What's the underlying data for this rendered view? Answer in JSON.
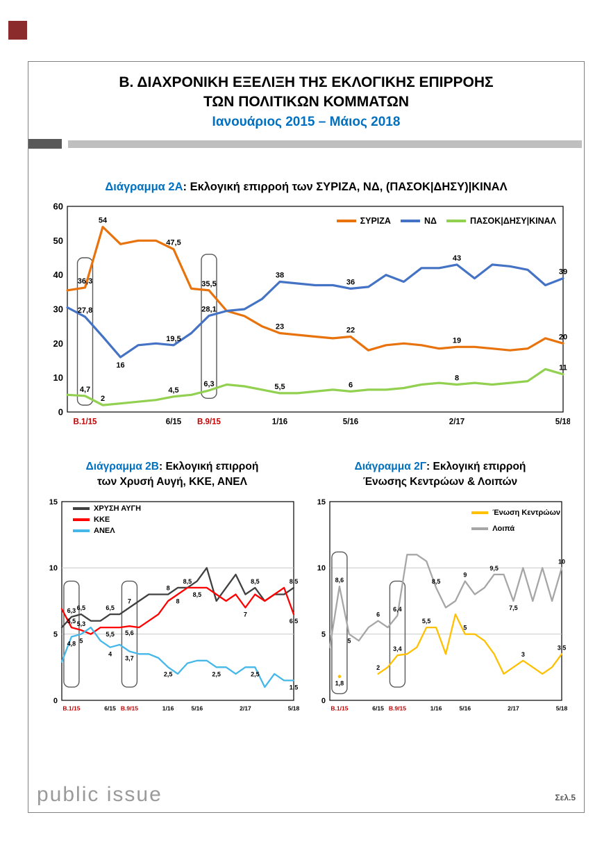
{
  "page": {
    "logo": "public issue",
    "page_number": "Σελ.5",
    "corner_color": "#8C2B2B",
    "accent_blue": "#0070C0",
    "election_label_red": "#C00000"
  },
  "header": {
    "title_line1": "Β. ΔΙΑΧΡΟΝΙΚΗ ΕΞΕΛΙΞΗ ΤΗΣ ΕΚΛΟΓΙΚΗΣ ΕΠΙΡΡΟΗΣ",
    "title_line2": "ΤΩΝ ΠΟΛΙΤΙΚΩΝ ΚΟΜΜΑΤΩΝ",
    "subtitle": "Ιανουάριος 2015 – Μάιος 2018"
  },
  "chart_data": [
    {
      "type": "line",
      "title_prefix": "Διάγραμμα 2Α",
      "title_rest": ": Εκλογική επιρροή των  ΣΥΡΙΖΑ, ΝΔ, (ΠΑΣΟΚ|ΔΗΣΥ)|ΚΙΝΑΛ",
      "ylim": [
        0,
        60
      ],
      "yticks": [
        0,
        10,
        20,
        30,
        40,
        50,
        60
      ],
      "gridlines": [],
      "n_points": 29,
      "xticks": [
        {
          "i": 1,
          "label": "Β.1/15",
          "color": "#C00000"
        },
        {
          "i": 6,
          "label": "6/15"
        },
        {
          "i": 8,
          "label": "Β.9/15",
          "color": "#C00000"
        },
        {
          "i": 12,
          "label": "1/16"
        },
        {
          "i": 16,
          "label": "5/16"
        },
        {
          "i": 22,
          "label": "2/17"
        },
        {
          "i": 28,
          "label": "5/18"
        }
      ],
      "election_boxes": [
        {
          "i": 1,
          "v0": 2,
          "v1": 45
        },
        {
          "i": 8,
          "v0": 4,
          "v1": 46
        }
      ],
      "legend": {
        "position": "top-right",
        "orientation": "horizontal",
        "items": [
          {
            "name": "ΣΥΡΙΖΑ",
            "color": "#E8720C"
          },
          {
            "name": "ΝΔ",
            "color": "#4472C4"
          },
          {
            "name": "ΠΑΣΟΚ|ΔΗΣΥ|ΚΙΝΑΛ",
            "color": "#92D050"
          }
        ]
      },
      "series": [
        {
          "name": "ΣΥΡΙΖΑ",
          "color": "#E8720C",
          "values": [
            35.5,
            36.3,
            54,
            49,
            50,
            50,
            47.5,
            36,
            35.5,
            29.5,
            28,
            25,
            23,
            22.5,
            22,
            21.5,
            22,
            18,
            19.5,
            20,
            19.5,
            18.5,
            19,
            19,
            18.5,
            18,
            18.5,
            21.5,
            20
          ],
          "labels": [
            {
              "i": 1,
              "t": "36,3",
              "pos": "above"
            },
            {
              "i": 2,
              "t": "54",
              "pos": "above"
            },
            {
              "i": 6,
              "t": "47,5",
              "pos": "above"
            },
            {
              "i": 8,
              "t": "35,5",
              "pos": "above"
            },
            {
              "i": 12,
              "t": "23",
              "pos": "above"
            },
            {
              "i": 16,
              "t": "22",
              "pos": "above"
            },
            {
              "i": 22,
              "t": "19",
              "pos": "above"
            },
            {
              "i": 28,
              "t": "20",
              "pos": "above"
            }
          ]
        },
        {
          "name": "ΝΔ",
          "color": "#4472C4",
          "values": [
            30.5,
            27.8,
            22,
            16,
            19.5,
            20,
            19.5,
            23,
            28.1,
            29.5,
            30,
            33,
            38,
            37.5,
            37,
            37,
            36,
            36.5,
            40,
            38,
            42,
            42,
            43,
            39,
            43,
            42.5,
            41.5,
            37,
            39
          ],
          "labels": [
            {
              "i": 1,
              "t": "27,8",
              "pos": "above"
            },
            {
              "i": 3,
              "t": "16",
              "pos": "below"
            },
            {
              "i": 6,
              "t": "19,5",
              "pos": "above"
            },
            {
              "i": 8,
              "t": "28,1",
              "pos": "above"
            },
            {
              "i": 12,
              "t": "38",
              "pos": "above"
            },
            {
              "i": 16,
              "t": "36",
              "pos": "above"
            },
            {
              "i": 22,
              "t": "43",
              "pos": "above"
            },
            {
              "i": 28,
              "t": "39",
              "pos": "above"
            }
          ]
        },
        {
          "name": "ΠΑΣΟΚ|ΔΗΣΥ|ΚΙΝΑΛ",
          "color": "#92D050",
          "values": [
            5,
            4.7,
            2,
            2.5,
            3,
            3.5,
            4.5,
            5,
            6.3,
            8,
            7.5,
            6.5,
            5.5,
            5.5,
            6,
            6.5,
            6,
            6.5,
            6.5,
            7,
            8,
            8.5,
            8,
            8.5,
            8,
            8.5,
            9,
            12.5,
            11
          ],
          "labels": [
            {
              "i": 1,
              "t": "4,7",
              "pos": "above"
            },
            {
              "i": 2,
              "t": "2",
              "pos": "above"
            },
            {
              "i": 6,
              "t": "4,5",
              "pos": "above"
            },
            {
              "i": 8,
              "t": "6,3",
              "pos": "above"
            },
            {
              "i": 12,
              "t": "5,5",
              "pos": "above"
            },
            {
              "i": 16,
              "t": "6",
              "pos": "above"
            },
            {
              "i": 22,
              "t": "8",
              "pos": "above"
            },
            {
              "i": 28,
              "t": "11",
              "pos": "above"
            }
          ]
        }
      ]
    },
    {
      "type": "line",
      "title_prefix": "Διάγραμμα 2Β",
      "title_rest": ": Εκλογική επιρροή",
      "title_line2": "των Χρυσή Αυγή, ΚΚΕ, ΑΝΕΛ",
      "ylim": [
        0,
        15
      ],
      "yticks": [
        0,
        5,
        10,
        15
      ],
      "gridlines": [
        5,
        10
      ],
      "n_points": 25,
      "xticks": [
        {
          "i": 1,
          "label": "Β.1/15",
          "color": "#C00000"
        },
        {
          "i": 5,
          "label": "6/15"
        },
        {
          "i": 7,
          "label": "Β.9/15",
          "color": "#C00000"
        },
        {
          "i": 11,
          "label": "1/16"
        },
        {
          "i": 14,
          "label": "5/16"
        },
        {
          "i": 19,
          "label": "2/17"
        },
        {
          "i": 24,
          "label": "5/18"
        }
      ],
      "election_boxes": [
        {
          "i": 1,
          "v0": 1,
          "v1": 9
        },
        {
          "i": 7,
          "v0": 1,
          "v1": 9
        }
      ],
      "legend": {
        "position": "top-left",
        "orientation": "vertical",
        "items": [
          {
            "name": "ΧΡΥΣΗ ΑΥΓΗ",
            "color": "#404040"
          },
          {
            "name": "ΚΚΕ",
            "color": "#FF0000"
          },
          {
            "name": "ΑΝΕΛ",
            "color": "#45B7E8"
          }
        ]
      },
      "series": [
        {
          "name": "ΧΡΥΣΗ ΑΥΓΗ",
          "color": "#404040",
          "values": [
            5.5,
            6.3,
            6.5,
            6,
            6,
            6.5,
            6.5,
            7,
            7.5,
            8,
            8,
            8,
            8.5,
            8.5,
            9,
            10,
            7.5,
            8.5,
            9.5,
            8,
            8.5,
            7.5,
            8,
            8,
            8.5
          ],
          "labels": [
            {
              "i": 1,
              "t": "6,3",
              "pos": "above"
            },
            {
              "i": 2,
              "t": "6,5",
              "pos": "above"
            },
            {
              "i": 5,
              "t": "6,5",
              "pos": "above"
            },
            {
              "i": 7,
              "t": "7",
              "pos": "above"
            },
            {
              "i": 11,
              "t": "8",
              "pos": "above"
            },
            {
              "i": 13,
              "t": "8,5",
              "pos": "above"
            },
            {
              "i": 20,
              "t": "8,5",
              "pos": "above"
            },
            {
              "i": 24,
              "t": "8,5",
              "pos": "above"
            }
          ]
        },
        {
          "name": "ΚΚΕ",
          "color": "#FF0000",
          "values": [
            6.9,
            5.5,
            5.3,
            5,
            5.5,
            5.5,
            5.5,
            5.6,
            5.5,
            6,
            6.5,
            7.5,
            8,
            8.5,
            8.5,
            8.5,
            8,
            7.5,
            8,
            7,
            8,
            7.5,
            8,
            8.5,
            6.5
          ],
          "labels": [
            {
              "i": 1,
              "t": "5,5",
              "pos": "above"
            },
            {
              "i": 2,
              "t": "5,3",
              "pos": "above"
            },
            {
              "i": 5,
              "t": "5,5",
              "pos": "below"
            },
            {
              "i": 7,
              "t": "5,6",
              "pos": "below"
            },
            {
              "i": 12,
              "t": "8",
              "pos": "below"
            },
            {
              "i": 14,
              "t": "8,5",
              "pos": "below"
            },
            {
              "i": 19,
              "t": "7",
              "pos": "below"
            },
            {
              "i": 24,
              "t": "6,5",
              "pos": "below"
            }
          ]
        },
        {
          "name": "ΑΝΕΛ",
          "color": "#45B7E8",
          "values": [
            2.9,
            4.8,
            5,
            5.5,
            4.5,
            4,
            4.2,
            3.7,
            3.5,
            3.5,
            3.2,
            2.5,
            2,
            2.8,
            3,
            3,
            2.5,
            2.5,
            2,
            2.5,
            2.5,
            1,
            2,
            1.5,
            1.5
          ],
          "labels": [
            {
              "i": 1,
              "t": "4,8",
              "pos": "below"
            },
            {
              "i": 2,
              "t": "5",
              "pos": "below"
            },
            {
              "i": 5,
              "t": "4",
              "pos": "below"
            },
            {
              "i": 7,
              "t": "3,7",
              "pos": "below"
            },
            {
              "i": 11,
              "t": "2,5",
              "pos": "below"
            },
            {
              "i": 16,
              "t": "2,5",
              "pos": "below"
            },
            {
              "i": 20,
              "t": "2,5",
              "pos": "below"
            },
            {
              "i": 24,
              "t": "1,5",
              "pos": "below"
            }
          ]
        }
      ]
    },
    {
      "type": "line",
      "title_prefix": "Διάγραμμα 2Γ",
      "title_rest": ": Εκλογική επιρροή",
      "title_line2": "Ένωσης Κεντρώων & Λοιπών",
      "ylim": [
        0,
        15
      ],
      "yticks": [
        0,
        5,
        10,
        15
      ],
      "gridlines": [
        5,
        10
      ],
      "n_points": 25,
      "xticks": [
        {
          "i": 1,
          "label": "Β.1/15",
          "color": "#C00000"
        },
        {
          "i": 5,
          "label": "6/15"
        },
        {
          "i": 7,
          "label": "Β.9/15",
          "color": "#C00000"
        },
        {
          "i": 11,
          "label": "1/16"
        },
        {
          "i": 14,
          "label": "5/16"
        },
        {
          "i": 19,
          "label": "2/17"
        },
        {
          "i": 24,
          "label": "5/18"
        }
      ],
      "election_boxes": [
        {
          "i": 1,
          "v0": 0.5,
          "v1": 11.2
        },
        {
          "i": 7,
          "v0": 1,
          "v1": 9
        }
      ],
      "legend": {
        "position": "top-right",
        "orientation": "vertical",
        "items": [
          {
            "name": "Ένωση Κεντρώων",
            "color": "#FFC000"
          },
          {
            "name": "Λοιπά",
            "color": "#A6A6A6"
          }
        ]
      },
      "series": [
        {
          "name": "Λοιπά",
          "color": "#A6A6A6",
          "values": [
            4,
            8.6,
            5,
            4.5,
            5.5,
            6,
            5.5,
            6.4,
            11,
            11,
            10.5,
            8.5,
            7,
            7.5,
            9,
            8,
            8.5,
            9.5,
            9.5,
            7.5,
            10,
            7.5,
            10,
            7.5,
            10
          ],
          "labels": [
            {
              "i": 1,
              "t": "8,6",
              "pos": "above"
            },
            {
              "i": 2,
              "t": "5",
              "pos": "below"
            },
            {
              "i": 5,
              "t": "6",
              "pos": "above"
            },
            {
              "i": 7,
              "t": "6,4",
              "pos": "above"
            },
            {
              "i": 11,
              "t": "8,5",
              "pos": "above"
            },
            {
              "i": 14,
              "t": "9",
              "pos": "above"
            },
            {
              "i": 17,
              "t": "9,5",
              "pos": "above"
            },
            {
              "i": 19,
              "t": "7,5",
              "pos": "below"
            },
            {
              "i": 24,
              "t": "10",
              "pos": "above"
            }
          ]
        },
        {
          "name": "Ένωση Κεντρώων",
          "color": "#FFC000",
          "values": [
            null,
            1.8,
            null,
            null,
            null,
            2,
            2.5,
            3.4,
            3.5,
            4,
            5.5,
            5.5,
            3.5,
            6.5,
            5,
            5,
            4.5,
            3.5,
            2,
            2.5,
            3,
            2.5,
            2,
            2.5,
            3.5
          ],
          "labels": [
            {
              "i": 1,
              "t": "1,8",
              "pos": "below"
            },
            {
              "i": 5,
              "t": "2",
              "pos": "above"
            },
            {
              "i": 7,
              "t": "3,4",
              "pos": "above"
            },
            {
              "i": 10,
              "t": "5,5",
              "pos": "above"
            },
            {
              "i": 14,
              "t": "5",
              "pos": "above"
            },
            {
              "i": 20,
              "t": "3",
              "pos": "above"
            },
            {
              "i": 24,
              "t": "3,5",
              "pos": "above"
            }
          ]
        }
      ]
    }
  ]
}
